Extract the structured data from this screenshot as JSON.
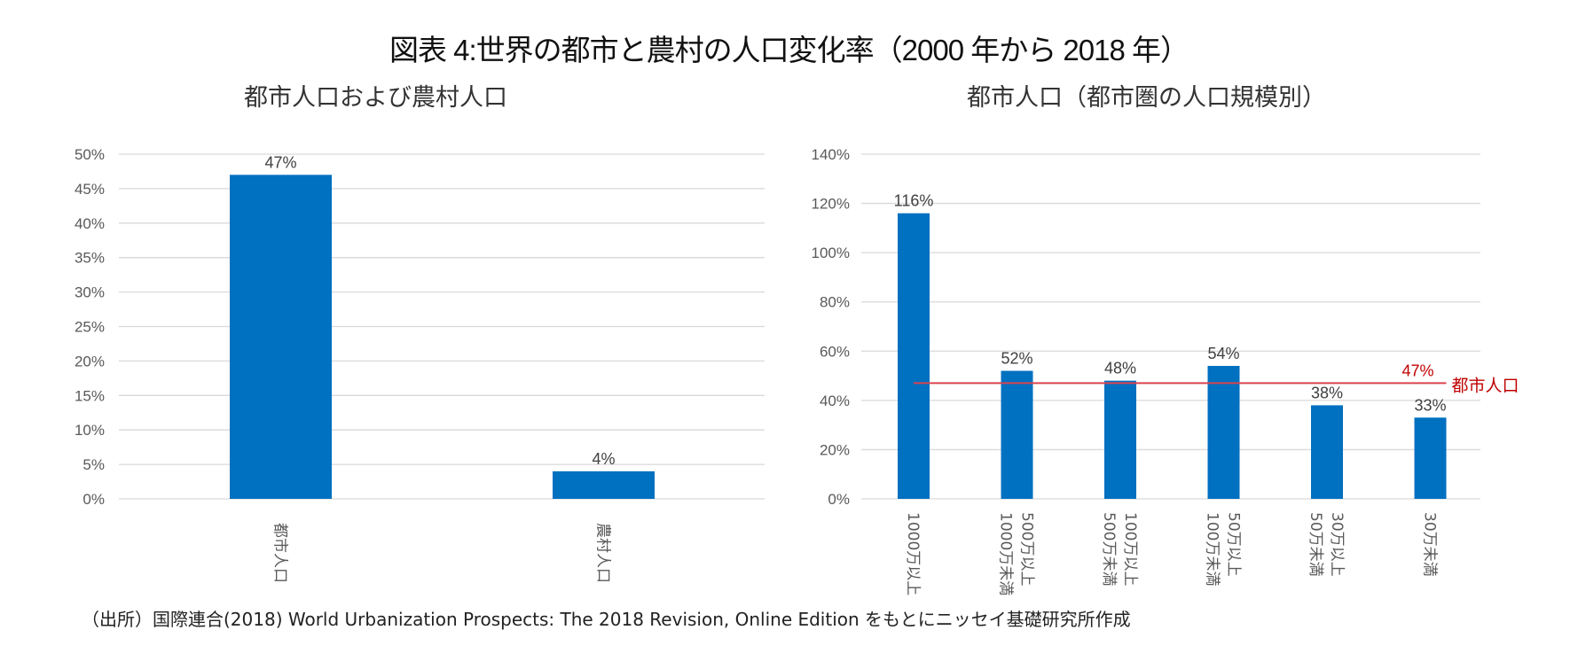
{
  "title": "図表 4:世界の都市と農村の人口変化率（2000 年から 2018 年）",
  "source": "（出所）国際連合(2018) World Urbanization Prospects: The 2018 Revision, Online Edition をもとにニッセイ基礎研究所作成",
  "colors": {
    "bar": "#0070C0",
    "reference": "#D9434F",
    "reference_label": "#C00000",
    "grid": "#D9D9D9"
  },
  "chart_data": [
    {
      "type": "bar",
      "title": "都市人口および農村人口",
      "categories": [
        "都市人口",
        "農村人口"
      ],
      "values": [
        47,
        4
      ],
      "data_labels": [
        "47%",
        "4%"
      ],
      "ylim": [
        0,
        50
      ],
      "yticks": [
        0,
        5,
        10,
        15,
        20,
        25,
        30,
        35,
        40,
        45,
        50
      ],
      "ytick_labels": [
        "0%",
        "5%",
        "10%",
        "15%",
        "20%",
        "25%",
        "30%",
        "35%",
        "40%",
        "45%",
        "50%"
      ],
      "xlabel": "",
      "ylabel": "",
      "grid": true,
      "legend": "none"
    },
    {
      "type": "bar",
      "title": "都市人口（都市圏の人口規模別）",
      "categories": [
        [
          "1000万以上"
        ],
        [
          "500万以上",
          "1000万未満"
        ],
        [
          "100万以上",
          "500万未満"
        ],
        [
          "50万以上",
          "100万未満"
        ],
        [
          "30万以上",
          "50万未満"
        ],
        [
          "30万未満"
        ]
      ],
      "values": [
        116,
        52,
        48,
        54,
        38,
        33
      ],
      "data_labels": [
        "116%",
        "52%",
        "48%",
        "54%",
        "38%",
        "33%"
      ],
      "ylim": [
        0,
        140
      ],
      "yticks": [
        0,
        20,
        40,
        60,
        80,
        100,
        120,
        140
      ],
      "ytick_labels": [
        "0%",
        "20%",
        "40%",
        "60%",
        "80%",
        "100%",
        "120%",
        "140%"
      ],
      "reference_line": {
        "value": 47,
        "value_label": "47%",
        "label": "都市人口"
      },
      "xlabel": "",
      "ylabel": "",
      "grid": true,
      "legend": "none"
    }
  ]
}
